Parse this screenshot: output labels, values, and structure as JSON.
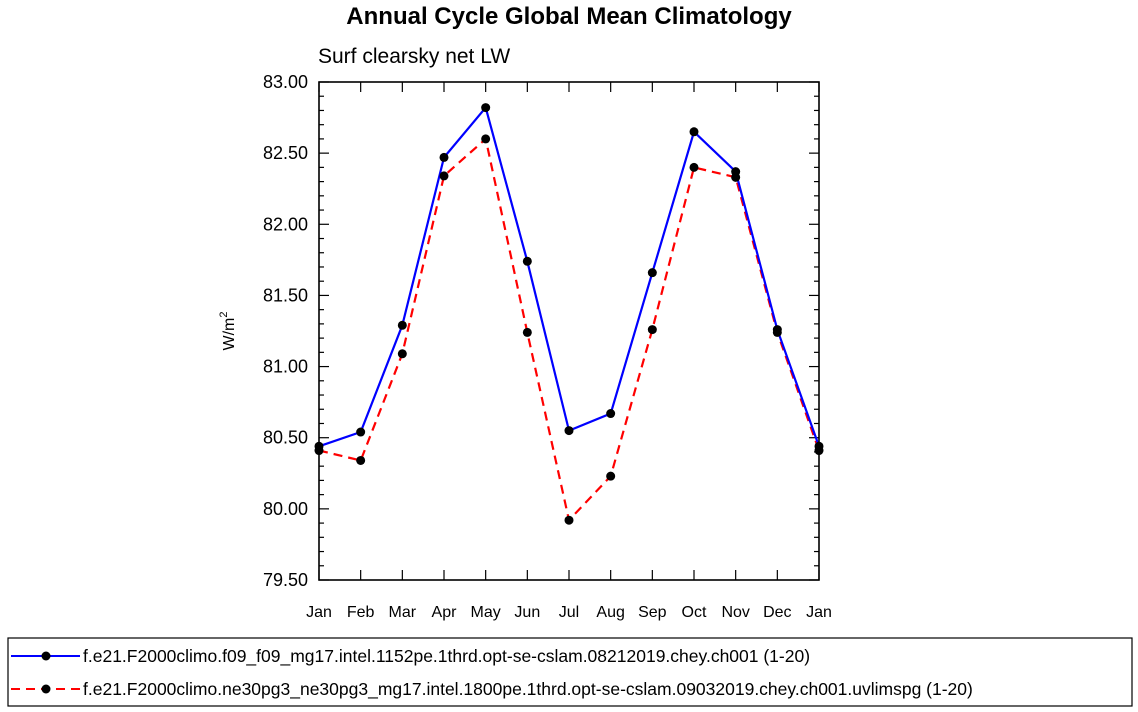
{
  "chart_data": {
    "type": "line",
    "title": "Annual Cycle Global Mean Climatology",
    "subtitle": "Surf clearsky net LW",
    "xlabel": "",
    "ylabel": "W/m",
    "ylabel_superscript": "2",
    "categories": [
      "Jan",
      "Feb",
      "Mar",
      "Apr",
      "May",
      "Jun",
      "Jul",
      "Aug",
      "Sep",
      "Oct",
      "Nov",
      "Dec",
      "Jan"
    ],
    "ylim": [
      79.5,
      83.0
    ],
    "yticks": [
      "79.50",
      "80.00",
      "80.50",
      "81.00",
      "81.50",
      "82.00",
      "82.50",
      "83.00"
    ],
    "series": [
      {
        "name": "f.e21.F2000climo.f09_f09_mg17.intel.1152pe.1thrd.opt-se-cslam.08212019.chey.ch001 (1-20)",
        "color": "#0000ff",
        "style": "solid",
        "values": [
          80.44,
          80.54,
          81.29,
          82.47,
          82.82,
          81.74,
          80.55,
          80.67,
          81.66,
          82.65,
          82.37,
          81.26,
          80.44
        ]
      },
      {
        "name": "f.e21.F2000climo.ne30pg3_ne30pg3_mg17.intel.1800pe.1thrd.opt-se-cslam.09032019.chey.ch001.uvlimspg (1-20)",
        "color": "#ff0000",
        "style": "dashed",
        "values": [
          80.41,
          80.34,
          81.09,
          82.34,
          82.6,
          81.24,
          79.92,
          80.23,
          81.26,
          82.4,
          82.33,
          81.24,
          80.41
        ]
      }
    ],
    "grid": false,
    "legend_position": "bottom"
  }
}
